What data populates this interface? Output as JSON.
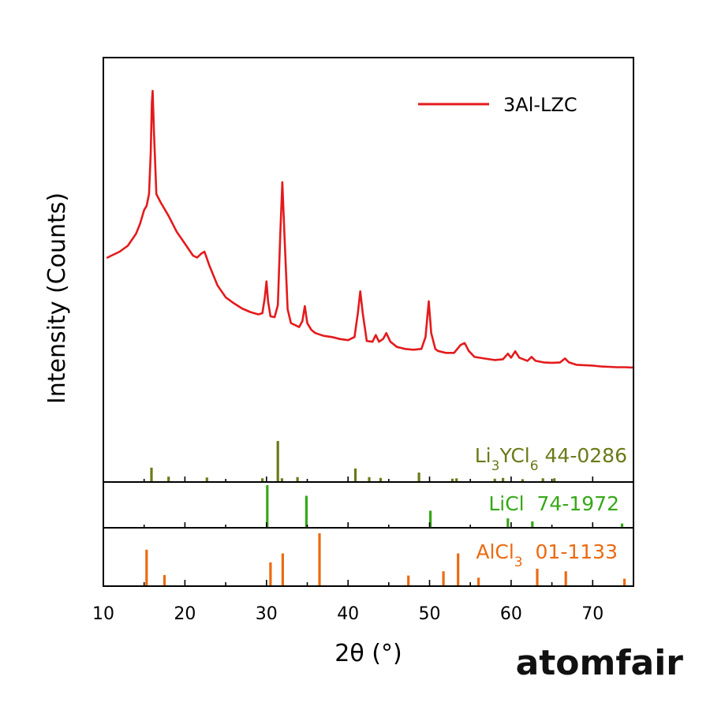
{
  "chart_data": {
    "type": "line",
    "xlabel": "2θ (°)",
    "ylabel": "Intensity (Counts)",
    "xlim": [
      10,
      75
    ],
    "x_ticks": [
      10,
      20,
      30,
      40,
      50,
      60,
      70
    ],
    "grid": false,
    "legend": {
      "position": "top-right"
    },
    "series": [
      {
        "name": "3Al-LZC",
        "color": "#e41a1c",
        "points": [
          [
            10.5,
            0.44
          ],
          [
            11,
            0.445
          ],
          [
            12,
            0.455
          ],
          [
            13,
            0.47
          ],
          [
            14,
            0.5
          ],
          [
            14.5,
            0.525
          ],
          [
            15,
            0.56
          ],
          [
            15.3,
            0.57
          ],
          [
            15.6,
            0.6
          ],
          [
            15.8,
            0.7
          ],
          [
            15.95,
            0.83
          ],
          [
            16.05,
            0.86
          ],
          [
            16.2,
            0.76
          ],
          [
            16.5,
            0.6
          ],
          [
            17,
            0.58
          ],
          [
            18,
            0.545
          ],
          [
            19,
            0.505
          ],
          [
            20,
            0.475
          ],
          [
            21,
            0.445
          ],
          [
            21.5,
            0.44
          ],
          [
            22,
            0.45
          ],
          [
            22.4,
            0.455
          ],
          [
            23,
            0.42
          ],
          [
            24,
            0.37
          ],
          [
            25,
            0.34
          ],
          [
            26,
            0.325
          ],
          [
            27,
            0.312
          ],
          [
            28,
            0.303
          ],
          [
            29,
            0.297
          ],
          [
            29.5,
            0.3
          ],
          [
            29.8,
            0.34
          ],
          [
            30.0,
            0.38
          ],
          [
            30.2,
            0.33
          ],
          [
            30.5,
            0.292
          ],
          [
            31,
            0.29
          ],
          [
            31.4,
            0.32
          ],
          [
            31.7,
            0.5
          ],
          [
            31.95,
            0.63
          ],
          [
            32.2,
            0.5
          ],
          [
            32.6,
            0.31
          ],
          [
            33,
            0.275
          ],
          [
            33.5,
            0.27
          ],
          [
            34,
            0.265
          ],
          [
            34.4,
            0.28
          ],
          [
            34.7,
            0.318
          ],
          [
            35,
            0.275
          ],
          [
            35.5,
            0.258
          ],
          [
            36,
            0.25
          ],
          [
            37,
            0.243
          ],
          [
            38,
            0.24
          ],
          [
            39,
            0.235
          ],
          [
            40,
            0.232
          ],
          [
            40.8,
            0.24
          ],
          [
            41.2,
            0.3
          ],
          [
            41.5,
            0.355
          ],
          [
            41.8,
            0.3
          ],
          [
            42.3,
            0.23
          ],
          [
            43,
            0.228
          ],
          [
            43.4,
            0.245
          ],
          [
            43.8,
            0.228
          ],
          [
            44.3,
            0.235
          ],
          [
            44.7,
            0.25
          ],
          [
            45.2,
            0.228
          ],
          [
            46,
            0.215
          ],
          [
            47,
            0.21
          ],
          [
            48,
            0.208
          ],
          [
            49,
            0.21
          ],
          [
            49.5,
            0.24
          ],
          [
            49.9,
            0.33
          ],
          [
            50.2,
            0.25
          ],
          [
            50.7,
            0.21
          ],
          [
            51,
            0.205
          ],
          [
            52,
            0.2
          ],
          [
            53,
            0.2
          ],
          [
            53.8,
            0.22
          ],
          [
            54.3,
            0.225
          ],
          [
            54.8,
            0.205
          ],
          [
            55.5,
            0.19
          ],
          [
            57,
            0.185
          ],
          [
            58,
            0.182
          ],
          [
            59,
            0.184
          ],
          [
            59.6,
            0.198
          ],
          [
            60.0,
            0.188
          ],
          [
            60.5,
            0.204
          ],
          [
            61,
            0.188
          ],
          [
            62,
            0.18
          ],
          [
            62.5,
            0.19
          ],
          [
            63,
            0.18
          ],
          [
            64,
            0.176
          ],
          [
            65,
            0.175
          ],
          [
            66,
            0.176
          ],
          [
            66.6,
            0.186
          ],
          [
            67.1,
            0.176
          ],
          [
            68,
            0.17
          ],
          [
            69,
            0.169
          ],
          [
            70,
            0.168
          ],
          [
            71,
            0.166
          ],
          [
            72,
            0.165
          ],
          [
            73,
            0.164
          ],
          [
            74,
            0.164
          ],
          [
            75,
            0.163
          ]
        ]
      }
    ],
    "references": [
      {
        "name": "Li3YCl6 44-0286",
        "color": "#6a7b19",
        "peaks": [
          [
            15.9,
            0.35
          ],
          [
            18.0,
            0.13
          ],
          [
            22.7,
            0.11
          ],
          [
            29.5,
            0.09
          ],
          [
            31.4,
            1.0
          ],
          [
            31.9,
            0.09
          ],
          [
            33.8,
            0.12
          ],
          [
            40.9,
            0.33
          ],
          [
            42.6,
            0.12
          ],
          [
            44.0,
            0.1
          ],
          [
            48.7,
            0.23
          ],
          [
            52.8,
            0.08
          ],
          [
            53.3,
            0.09
          ],
          [
            58.0,
            0.08
          ],
          [
            59.0,
            0.1
          ],
          [
            61.4,
            0.07
          ],
          [
            63.9,
            0.09
          ],
          [
            65.3,
            0.09
          ]
        ]
      },
      {
        "name": "LiCl  74-1972",
        "color": "#36a817",
        "peaks": [
          [
            30.1,
            1.0
          ],
          [
            34.9,
            0.75
          ],
          [
            50.1,
            0.4
          ],
          [
            59.6,
            0.22
          ],
          [
            62.6,
            0.15
          ],
          [
            73.6,
            0.1
          ]
        ]
      },
      {
        "name": "AlCl3  01-1133",
        "color": "#ec6a10",
        "peaks": [
          [
            15.3,
            0.69
          ],
          [
            17.5,
            0.21
          ],
          [
            30.5,
            0.45
          ],
          [
            32.0,
            0.62
          ],
          [
            36.5,
            1.0
          ],
          [
            47.4,
            0.2
          ],
          [
            51.7,
            0.28
          ],
          [
            53.5,
            0.62
          ],
          [
            56.0,
            0.16
          ],
          [
            63.2,
            0.33
          ],
          [
            66.7,
            0.28
          ],
          [
            73.9,
            0.14
          ]
        ]
      }
    ]
  },
  "branding": {
    "logo_text": "atomfair"
  }
}
